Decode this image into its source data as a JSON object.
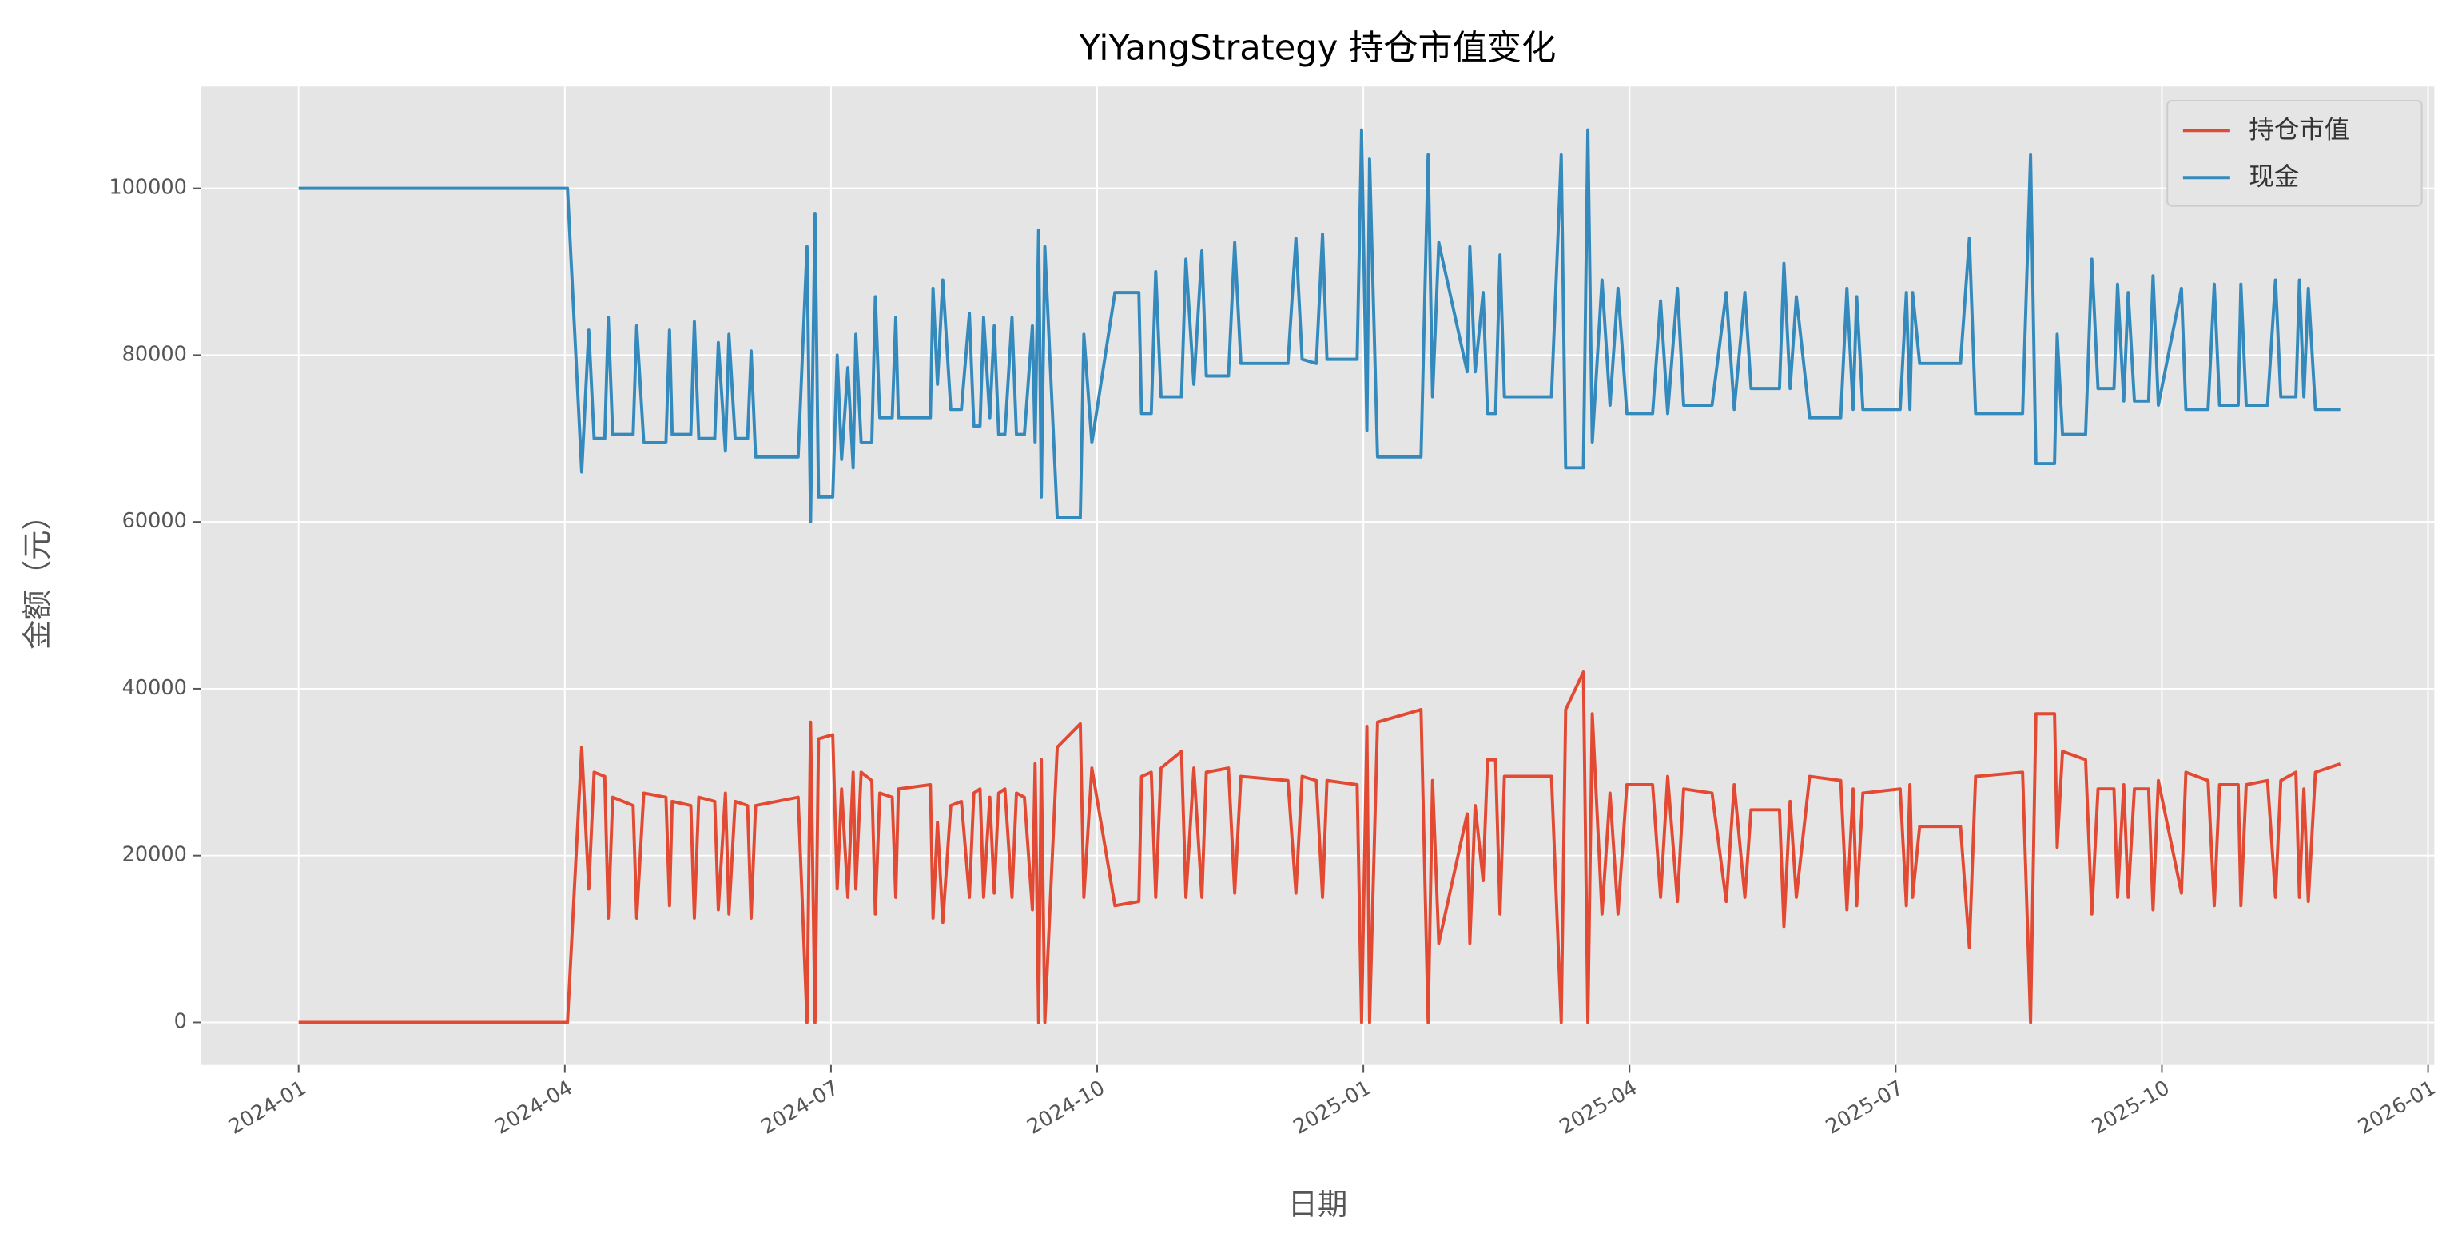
{
  "chart_data": {
    "type": "line",
    "title": "YiYangStrategy 持仓市值变化",
    "x_label": "日期",
    "y_label": "金额（元）",
    "xlim": [
      -1.1,
      24.07
    ],
    "xticks": [
      {
        "value": 0,
        "label": "2024-01"
      },
      {
        "value": 3,
        "label": "2024-04"
      },
      {
        "value": 6,
        "label": "2024-07"
      },
      {
        "value": 9,
        "label": "2024-10"
      },
      {
        "value": 12,
        "label": "2025-01"
      },
      {
        "value": 15,
        "label": "2025-04"
      },
      {
        "value": 18,
        "label": "2025-07"
      },
      {
        "value": 21,
        "label": "2025-10"
      },
      {
        "value": 24,
        "label": "2026-01"
      }
    ],
    "ylim": [
      -5100,
      112200
    ],
    "yticks": [
      0,
      20000,
      40000,
      60000,
      80000,
      100000
    ],
    "grid": true,
    "legend": "upper right",
    "x": [
      0,
      3.03,
      3.19,
      3.27,
      3.33,
      3.45,
      3.49,
      3.54,
      3.77,
      3.81,
      3.89,
      4.14,
      4.18,
      4.21,
      4.42,
      4.46,
      4.51,
      4.69,
      4.73,
      4.81,
      4.85,
      4.92,
      5.06,
      5.1,
      5.15,
      5.63,
      5.73,
      5.77,
      5.82,
      5.86,
      6.02,
      6.07,
      6.12,
      6.19,
      6.25,
      6.28,
      6.34,
      6.46,
      6.5,
      6.55,
      6.69,
      6.73,
      6.76,
      7.12,
      7.15,
      7.2,
      7.26,
      7.35,
      7.47,
      7.56,
      7.61,
      7.68,
      7.72,
      7.79,
      7.84,
      7.89,
      7.96,
      8.04,
      8.09,
      8.18,
      8.27,
      8.3,
      8.34,
      8.37,
      8.41,
      8.55,
      8.81,
      8.85,
      8.94,
      9.2,
      9.47,
      9.5,
      9.61,
      9.66,
      9.72,
      9.95,
      10.0,
      10.09,
      10.18,
      10.23,
      10.48,
      10.55,
      10.62,
      11.15,
      11.24,
      11.31,
      11.47,
      11.54,
      11.59,
      11.93,
      11.98,
      12.04,
      12.07,
      12.16,
      12.65,
      12.73,
      12.78,
      12.85,
      13.17,
      13.2,
      13.26,
      13.35,
      13.4,
      13.49,
      13.54,
      13.59,
      14.12,
      14.23,
      14.28,
      14.48,
      14.53,
      14.58,
      14.69,
      14.78,
      14.87,
      14.97,
      15.26,
      15.35,
      15.43,
      15.54,
      15.61,
      15.93,
      16.09,
      16.18,
      16.3,
      16.37,
      16.69,
      16.74,
      16.81,
      16.88,
      17.03,
      17.38,
      17.45,
      17.52,
      17.56,
      17.63,
      18.05,
      18.12,
      18.16,
      18.19,
      18.27,
      18.73,
      18.83,
      18.9,
      19.43,
      19.52,
      19.58,
      19.79,
      19.82,
      19.88,
      20.14,
      20.21,
      20.28,
      20.46,
      20.5,
      20.57,
      20.62,
      20.69,
      20.85,
      20.9,
      20.96,
      21.22,
      21.27,
      21.52,
      21.59,
      21.65,
      21.86,
      21.89,
      21.95,
      22.19,
      22.28,
      22.34,
      22.51,
      22.55,
      22.6,
      22.65,
      22.73,
      23.01
    ],
    "series": [
      {
        "name": "持仓市值",
        "color": "#e24a33",
        "values": [
          0,
          0,
          33000,
          16000,
          30000,
          29500,
          12500,
          27000,
          26000,
          12500,
          27500,
          27000,
          14000,
          26500,
          26000,
          12500,
          27000,
          26500,
          13500,
          27500,
          13000,
          26500,
          26000,
          12500,
          26000,
          27000,
          0,
          36000,
          0,
          34000,
          34500,
          16000,
          28000,
          15000,
          30000,
          16000,
          30000,
          29000,
          13000,
          27500,
          27000,
          15000,
          28000,
          28500,
          12500,
          24000,
          12000,
          26000,
          26500,
          15000,
          27500,
          28000,
          15000,
          27000,
          15500,
          27500,
          28000,
          15000,
          27500,
          27000,
          13500,
          31000,
          0,
          31500,
          0,
          33000,
          35800,
          15000,
          30500,
          14000,
          14500,
          29500,
          30000,
          15000,
          30500,
          32500,
          15000,
          30500,
          15000,
          30000,
          30500,
          15500,
          29500,
          29000,
          15500,
          29500,
          29000,
          15000,
          29000,
          28500,
          0,
          35500,
          0,
          36000,
          37500,
          0,
          29000,
          9500,
          25000,
          9500,
          26000,
          17000,
          31500,
          31500,
          13000,
          29500,
          29500,
          0,
          37500,
          42000,
          0,
          37000,
          13000,
          27500,
          13000,
          28500,
          28500,
          15000,
          29500,
          14500,
          28000,
          27500,
          14500,
          28500,
          15000,
          25500,
          25500,
          11500,
          26500,
          15000,
          29500,
          29000,
          13500,
          28000,
          14000,
          27500,
          28000,
          14000,
          28500,
          15000,
          23500,
          23500,
          9000,
          29500,
          30000,
          0,
          37000,
          37000,
          21000,
          32500,
          31500,
          13000,
          28000,
          28000,
          15000,
          28500,
          15000,
          28000,
          28000,
          13500,
          29000,
          15500,
          30000,
          29000,
          14000,
          28500,
          28500,
          14000,
          28500,
          29000,
          15000,
          29000,
          30000,
          15000,
          28000,
          14500,
          30000,
          31000
        ]
      },
      {
        "name": "现金",
        "color": "#348abd",
        "values": [
          100000,
          100000,
          66000,
          83000,
          70000,
          70000,
          84500,
          70500,
          70500,
          83500,
          69500,
          69500,
          83000,
          70500,
          70500,
          84000,
          70000,
          70000,
          81500,
          68500,
          82500,
          70000,
          70000,
          80500,
          67800,
          67800,
          93000,
          60000,
          97000,
          63000,
          63000,
          80000,
          67500,
          78500,
          66500,
          82500,
          69500,
          69500,
          87000,
          72500,
          72500,
          84500,
          72500,
          72500,
          88000,
          76500,
          89000,
          73500,
          73500,
          85000,
          71500,
          71500,
          84500,
          72500,
          83500,
          70500,
          70500,
          84500,
          70500,
          70500,
          83500,
          69500,
          95000,
          63000,
          93000,
          60500,
          60500,
          82500,
          69500,
          87500,
          87500,
          73000,
          73000,
          90000,
          75000,
          75000,
          91500,
          76500,
          92500,
          77500,
          77500,
          93500,
          79000,
          79000,
          94000,
          79500,
          79000,
          94500,
          79500,
          79500,
          107000,
          71000,
          103500,
          67800,
          67800,
          104000,
          75000,
          93500,
          78000,
          93000,
          78000,
          87500,
          73000,
          73000,
          92000,
          75000,
          75000,
          104000,
          66500,
          66500,
          107000,
          69500,
          89000,
          74000,
          88000,
          73000,
          73000,
          86500,
          73000,
          88000,
          74000,
          74000,
          87500,
          73500,
          87500,
          76000,
          76000,
          91000,
          76000,
          87000,
          72500,
          72500,
          88000,
          73500,
          87000,
          73500,
          73500,
          87500,
          73500,
          87500,
          79000,
          79000,
          94000,
          73000,
          73000,
          104000,
          67000,
          67000,
          82500,
          70500,
          70500,
          91500,
          76000,
          76000,
          88500,
          74500,
          87500,
          74500,
          74500,
          89500,
          74000,
          88000,
          73500,
          73500,
          88500,
          74000,
          74000,
          88500,
          74000,
          74000,
          89000,
          75000,
          75000,
          89000,
          75000,
          88000,
          73500,
          73500
        ]
      }
    ]
  }
}
